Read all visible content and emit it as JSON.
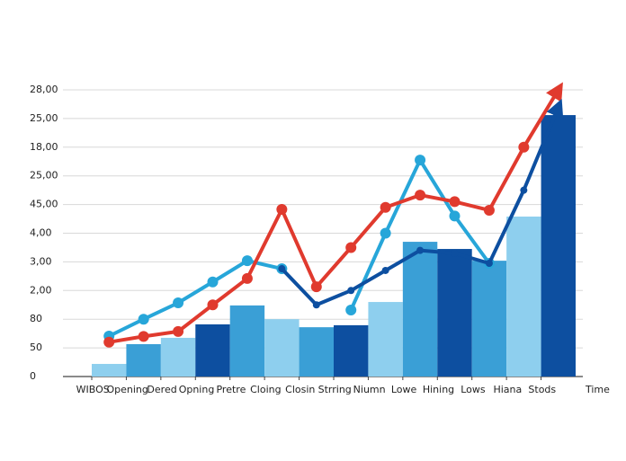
{
  "chart_data": {
    "type": "bar",
    "categories": [
      "WIBOS",
      "Opening",
      "Dered",
      "Opning",
      "Pretre",
      "Cloing",
      "Closin",
      "Strring",
      "Niumn",
      "Lowe",
      "Hining",
      "Lows",
      "Hiana",
      "Stods"
    ],
    "x_label": "Time",
    "values": [
      0.44,
      1.13,
      1.35,
      1.82,
      2.48,
      2.0,
      1.72,
      1.79,
      2.6,
      4.7,
      4.45,
      4.04,
      5.58,
      9.12
    ],
    "colors": [
      "#8ecfee",
      "#3a9fd6",
      "#8ecfee",
      "#0d4fa0",
      "#3a9fd6",
      "#8ecfee",
      "#3a9fd6",
      "#0d4fa0",
      "#8ecfee",
      "#3a9fd6",
      "#0d4fa0",
      "#3a9fd6",
      "#8ecfee",
      "#0d4fa0"
    ],
    "series": [
      {
        "name": null,
        "color": "#27a6d9",
        "values": [
          1.41,
          2.0,
          2.57,
          3.3,
          4.04,
          3.76,
          null,
          2.32,
          5.0,
          7.55,
          5.6,
          3.95,
          null,
          null
        ]
      },
      {
        "name": null,
        "color": "#e03a2e",
        "values": [
          1.2,
          1.4,
          1.57,
          2.5,
          3.42,
          5.83,
          3.13,
          4.5,
          5.9,
          6.33,
          6.1,
          5.8,
          8.0,
          10.0
        ]
      },
      {
        "name": null,
        "color": "#0d4fa0",
        "values": [
          null,
          null,
          null,
          null,
          null,
          3.76,
          2.5,
          3.0,
          3.7,
          4.4,
          4.3,
          3.95,
          6.5,
          9.4
        ]
      }
    ],
    "ylim": [
      0,
      10
    ],
    "yticks": [
      0,
      {
        "value": 1,
        "label": "50"
      },
      {
        "value": 2,
        "label": "80"
      },
      {
        "value": 3,
        "label": "2,00"
      },
      {
        "value": 4,
        "label": "3,00"
      },
      {
        "value": 5,
        "label": "4,00"
      },
      {
        "value": 6,
        "label": "45,00"
      },
      {
        "value": 7,
        "label": "25,00"
      },
      {
        "value": 8,
        "label": "18,00"
      },
      {
        "value": 9,
        "label": "25,00"
      },
      {
        "value": 10,
        "label": "28,00"
      }
    ],
    "grid": true
  }
}
